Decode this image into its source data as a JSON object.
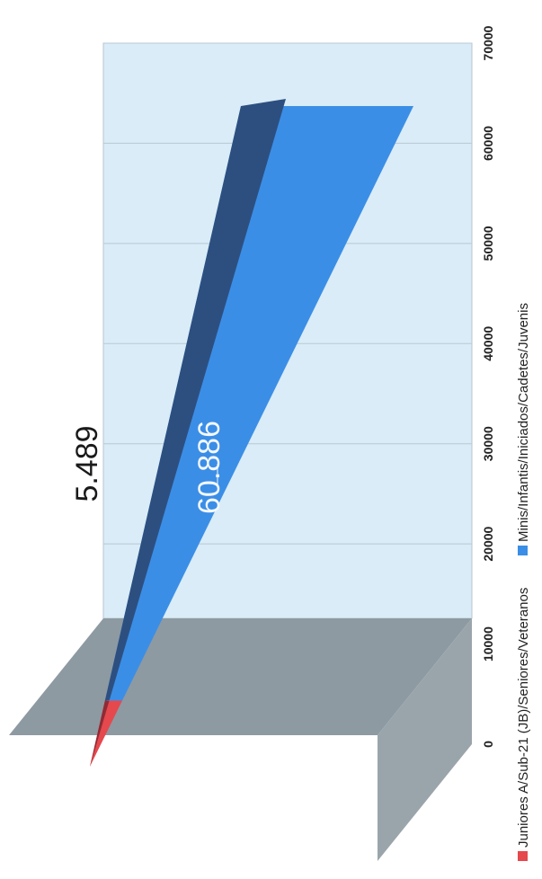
{
  "chart_data": {
    "type": "area",
    "title": "",
    "ylim": [
      0,
      70000
    ],
    "yticks": [
      "0",
      "10000",
      "20000",
      "30000",
      "40000",
      "50000",
      "60000",
      "70000"
    ],
    "grid": true,
    "legend_position": "bottom",
    "series": [
      {
        "name": "Juniores A/Sub-21 (JB)/Seniores/Veteranos",
        "value": 5489,
        "label": "5.489",
        "color": "#e5484d"
      },
      {
        "name": "Minis/Infantis/Iniciados/Cadetes/Juvenis",
        "value": 60886,
        "label": "60.886",
        "color": "#3b8ee6"
      }
    ]
  }
}
